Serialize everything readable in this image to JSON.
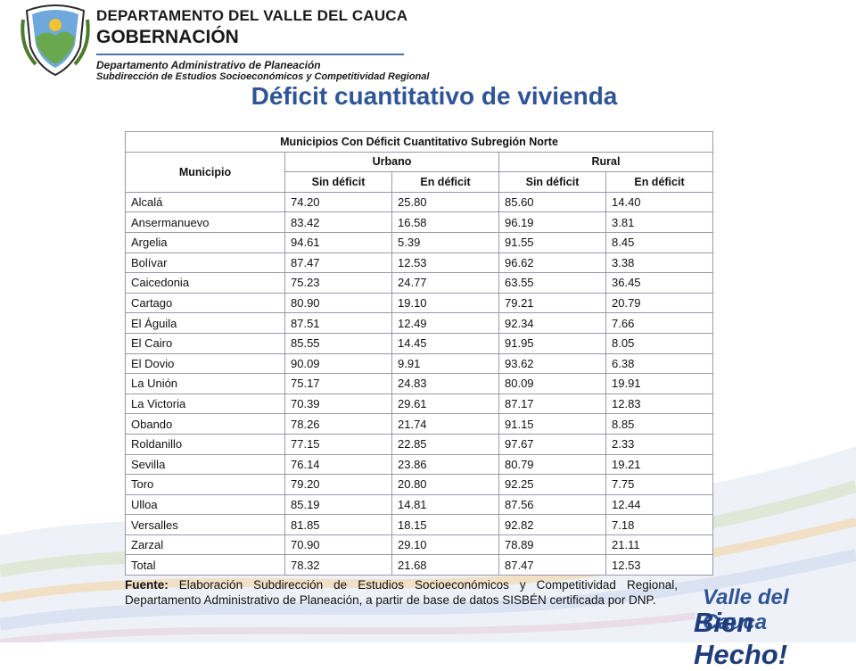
{
  "header": {
    "department_line": "DEPARTAMENTO DEL VALLE DEL CAUCA",
    "governance_line": "GOBERNACIÓN",
    "sub_line_1": "Departamento Administrativo de Planeación",
    "sub_line_2": "Subdirección de Estudios Socioeconómicos y Competitividad Regional"
  },
  "title": "Déficit cuantitativo de vivienda",
  "table": {
    "caption": "Municipios Con Déficit Cuantitativo Subregión Norte",
    "group_header_municipio": "Municipio",
    "group_header_urbano": "Urbano",
    "group_header_rural": "Rural",
    "sub_headers": [
      "Sin déficit",
      "En déficit",
      "Sin déficit",
      "En déficit"
    ],
    "rows": [
      [
        "Alcalá",
        "74.20",
        "25.80",
        "85.60",
        "14.40"
      ],
      [
        "Ansermanuevo",
        "83.42",
        "16.58",
        "96.19",
        "3.81"
      ],
      [
        "Argelia",
        "94.61",
        "5.39",
        "91.55",
        "8.45"
      ],
      [
        "Bolívar",
        "87.47",
        "12.53",
        "96.62",
        "3.38"
      ],
      [
        "Caicedonia",
        "75.23",
        "24.77",
        "63.55",
        "36.45"
      ],
      [
        "Cartago",
        "80.90",
        "19.10",
        "79.21",
        "20.79"
      ],
      [
        "El Águila",
        "87.51",
        "12.49",
        "92.34",
        "7.66"
      ],
      [
        "El Cairo",
        "85.55",
        "14.45",
        "91.95",
        "8.05"
      ],
      [
        "El Dovio",
        "90.09",
        "9.91",
        "93.62",
        "6.38"
      ],
      [
        "La Unión",
        "75.17",
        "24.83",
        "80.09",
        "19.91"
      ],
      [
        "La Victoria",
        "70.39",
        "29.61",
        "87.17",
        "12.83"
      ],
      [
        "Obando",
        "78.26",
        "21.74",
        "91.15",
        "8.85"
      ],
      [
        "Roldanillo",
        "77.15",
        "22.85",
        "97.67",
        "2.33"
      ],
      [
        "Sevilla",
        "76.14",
        "23.86",
        "80.79",
        "19.21"
      ],
      [
        "Toro",
        "79.20",
        "20.80",
        "92.25",
        "7.75"
      ],
      [
        "Ulloa",
        "85.19",
        "14.81",
        "87.56",
        "12.44"
      ],
      [
        "Versalles",
        "81.85",
        "18.15",
        "92.82",
        "7.18"
      ],
      [
        "Zarzal",
        "70.90",
        "29.10",
        "78.89",
        "21.11"
      ],
      [
        "Total",
        "78.32",
        "21.68",
        "87.47",
        "12.53"
      ]
    ]
  },
  "source": {
    "label": "Fuente:",
    "text": " Elaboración Subdirección de Estudios Socioeconómicos y Competitividad Regional, Departamento Administrativo de Planeación, a partir de base de datos SISBÉN certificada por DNP."
  },
  "brand": {
    "line1": "Valle del Cauca",
    "line2": "Bien Hecho!"
  },
  "colors": {
    "title": "#2f5597",
    "header_rule": "#4a6fb0",
    "brand": "#2f5597"
  },
  "icons": [
    "department-emblem-icon"
  ]
}
